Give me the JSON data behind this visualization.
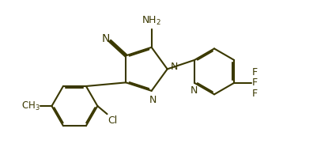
{
  "bg_color": "#ffffff",
  "line_color": "#3a3800",
  "lw": 1.5,
  "fs": 9.0,
  "figsize": [
    4.01,
    1.96
  ],
  "dpi": 100,
  "xlim": [
    0.0,
    4.01
  ],
  "ylim": [
    0.0,
    1.96
  ]
}
